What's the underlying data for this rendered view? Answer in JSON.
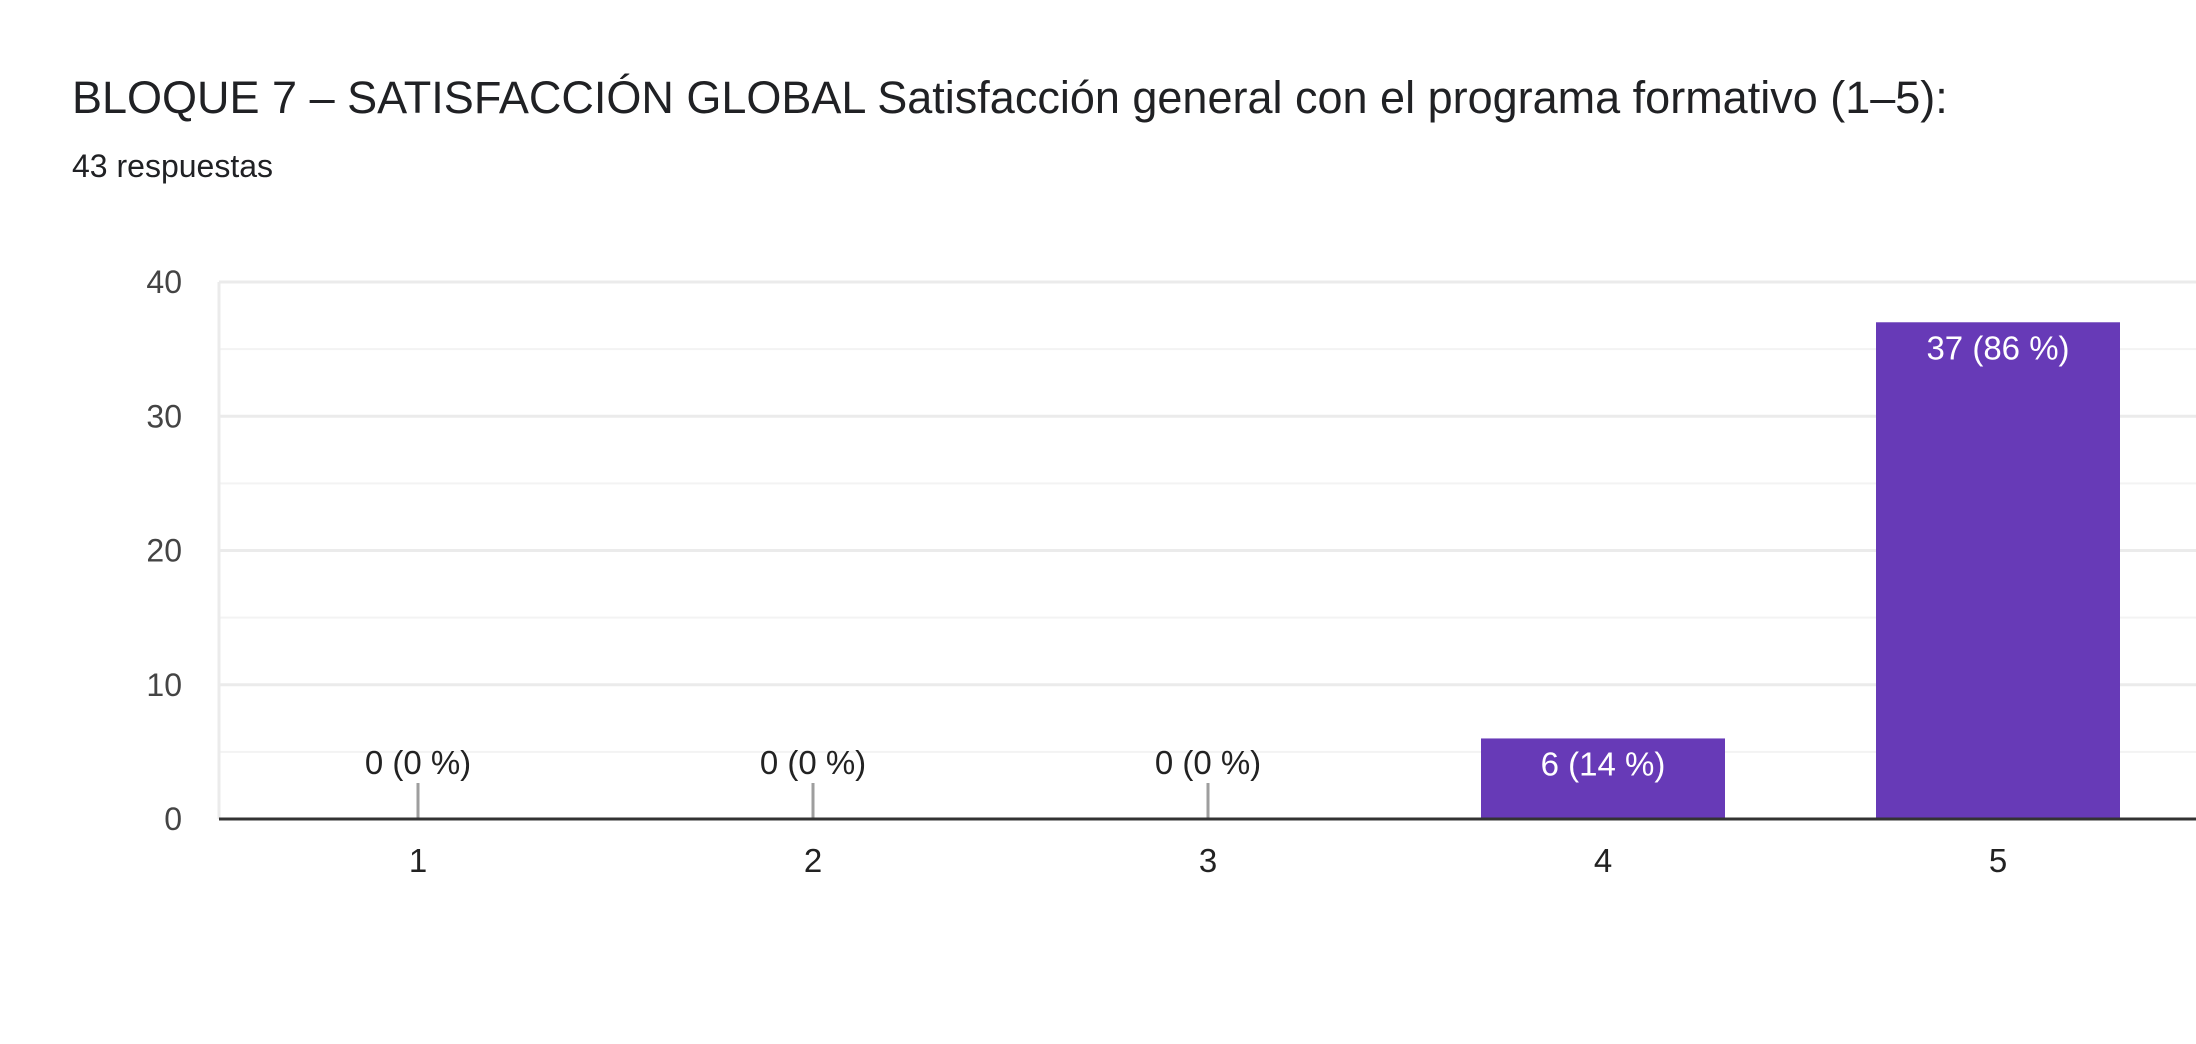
{
  "header": {
    "title": "BLOQUE 7 – SATISFACCIÓN GLOBAL Satisfacción general con el programa formativo (1–5):",
    "responses": "43 respuestas"
  },
  "colors": {
    "bar": "#673ab7",
    "grid": "#ebebeb",
    "minor_grid": "#f3f3f3",
    "axis": "#333333",
    "zero_tick": "#9e9e9e",
    "label_inside": "#ffffff",
    "label_outside": "#222222"
  },
  "chart_data": {
    "type": "bar",
    "title": "BLOQUE 7 – SATISFACCIÓN GLOBAL Satisfacción general con el programa formativo (1–5):",
    "subtitle": "43 respuestas",
    "categories": [
      "1",
      "2",
      "3",
      "4",
      "5"
    ],
    "values": [
      0,
      0,
      0,
      6,
      37
    ],
    "data_labels": [
      "0 (0 %)",
      "0 (0 %)",
      "0 (0 %)",
      "6 (14 %)",
      "37 (86 %)"
    ],
    "yticks": [
      "0",
      "10",
      "20",
      "30",
      "40"
    ],
    "ylim": [
      0,
      40
    ],
    "xlabel": "",
    "ylabel": "",
    "grid": true
  }
}
